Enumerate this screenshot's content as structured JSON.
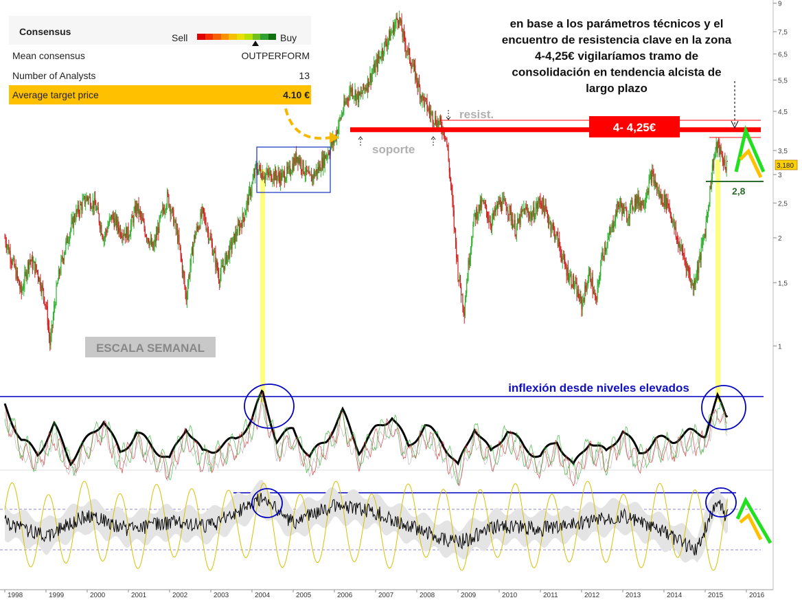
{
  "consensus": {
    "title": "Consensus",
    "sell_label": "Sell",
    "buy_label": "Buy",
    "meter_colors": [
      "#e00000",
      "#f03000",
      "#f56000",
      "#f89000",
      "#f5c000",
      "#e8e000",
      "#b8e000",
      "#70c020",
      "#30a030",
      "#107010"
    ],
    "rows": [
      {
        "label": "Mean consensus",
        "value": "OUTPERFORM"
      },
      {
        "label": "Number of Analysts",
        "value": "13"
      },
      {
        "label": "Average target price",
        "value": "4.10 €"
      }
    ]
  },
  "chart_data": {
    "type": "line",
    "scale": "log",
    "ylim": [
      0.9,
      9
    ],
    "xlim": [
      1998,
      2016.4
    ],
    "x_ticks": [
      "1998",
      "1999",
      "2000",
      "2001",
      "2002",
      "2003",
      "2004",
      "2005",
      "2006",
      "2007",
      "2008",
      "2009",
      "2010",
      "2011",
      "2012",
      "2013",
      "2014",
      "2015",
      "2016"
    ],
    "y_ticks": [
      "9",
      "7,5",
      "6,5",
      "5,5",
      "4,5",
      "3,5",
      "3",
      "2,5",
      "2",
      "1,5",
      "1"
    ],
    "last_price_label": "3,180",
    "price_series": {
      "x": [
        1998.0,
        1998.2,
        1998.4,
        1998.6,
        1998.8,
        1999.0,
        1999.1,
        1999.3,
        1999.5,
        1999.7,
        2000.0,
        2000.2,
        2000.4,
        2000.6,
        2000.8,
        2001.0,
        2001.2,
        2001.4,
        2001.6,
        2001.8,
        2001.95,
        2002.2,
        2002.4,
        2002.6,
        2002.8,
        2003.0,
        2003.2,
        2003.5,
        2003.8,
        2004.0,
        2004.1,
        2004.3,
        2004.5,
        2004.7,
        2004.9,
        2005.1,
        2005.2,
        2005.4,
        2005.6,
        2005.8,
        2006.0,
        2006.2,
        2006.4,
        2006.6,
        2006.8,
        2007.0,
        2007.2,
        2007.4,
        2007.55,
        2007.7,
        2007.9,
        2008.1,
        2008.3,
        2008.5,
        2008.6,
        2008.7,
        2008.8,
        2008.9,
        2009.0,
        2009.15,
        2009.4,
        2009.6,
        2009.8,
        2010.0,
        2010.2,
        2010.4,
        2010.6,
        2010.8,
        2011.0,
        2011.2,
        2011.4,
        2011.6,
        2011.8,
        2012.0,
        2012.2,
        2012.35,
        2012.5,
        2012.7,
        2012.9,
        2013.1,
        2013.3,
        2013.5,
        2013.7,
        2013.9,
        2014.1,
        2014.3,
        2014.5,
        2014.7,
        2014.85,
        2015.0,
        2015.1,
        2015.2,
        2015.3,
        2015.4,
        2015.5
      ],
      "y": [
        2.0,
        1.7,
        1.4,
        1.75,
        1.6,
        1.3,
        1.0,
        1.55,
        1.95,
        2.3,
        2.6,
        2.45,
        2.0,
        2.3,
        2.1,
        2.05,
        2.45,
        2.1,
        1.85,
        2.3,
        2.6,
        2.0,
        1.35,
        2.0,
        2.35,
        1.95,
        1.55,
        1.9,
        2.3,
        2.8,
        3.15,
        3.0,
        3.0,
        2.95,
        3.05,
        3.4,
        3.2,
        2.9,
        3.1,
        3.4,
        3.75,
        4.5,
        5.2,
        4.9,
        5.4,
        6.0,
        6.8,
        7.5,
        8.3,
        7.0,
        6.0,
        5.0,
        4.5,
        4.2,
        4.1,
        3.9,
        3.0,
        2.2,
        1.6,
        1.25,
        2.3,
        2.5,
        2.2,
        2.5,
        2.45,
        2.1,
        2.4,
        2.3,
        2.55,
        2.25,
        2.0,
        1.65,
        1.5,
        1.3,
        1.6,
        1.3,
        1.8,
        2.05,
        2.5,
        2.3,
        2.55,
        2.5,
        3.0,
        2.6,
        2.5,
        2.0,
        1.75,
        1.45,
        1.7,
        2.1,
        2.6,
        3.3,
        3.65,
        3.35,
        3.18
      ]
    },
    "annotations": {
      "comment": "en base a los parámetros técnicos y el encuentro de resistencia clave en la zona 4-4,25€ vigilaríamos tramo de consolidación en tendencia alcista de largo plazo",
      "resist_label": "resist.",
      "soporte_label": "soporte",
      "zone_label": "4- 4,25€",
      "support_level_label": "2,8",
      "scale_label": "ESCALA SEMANAL",
      "inflexion_label": "inflexión desde niveles elevados"
    },
    "levels": {
      "resistance": 4.0,
      "resistance_thin": 4.25,
      "support": 2.8
    },
    "colors": {
      "up": "#30b030",
      "down": "#d02020",
      "resistance": "#ff0000",
      "zone_box": "#ff0000",
      "highlight": "#ffff66",
      "box": "#1030c0",
      "arrow_dashed": "#f5b800",
      "green": "#20e020",
      "orange": "#ffc000",
      "blue_line": "#0000c0"
    }
  }
}
